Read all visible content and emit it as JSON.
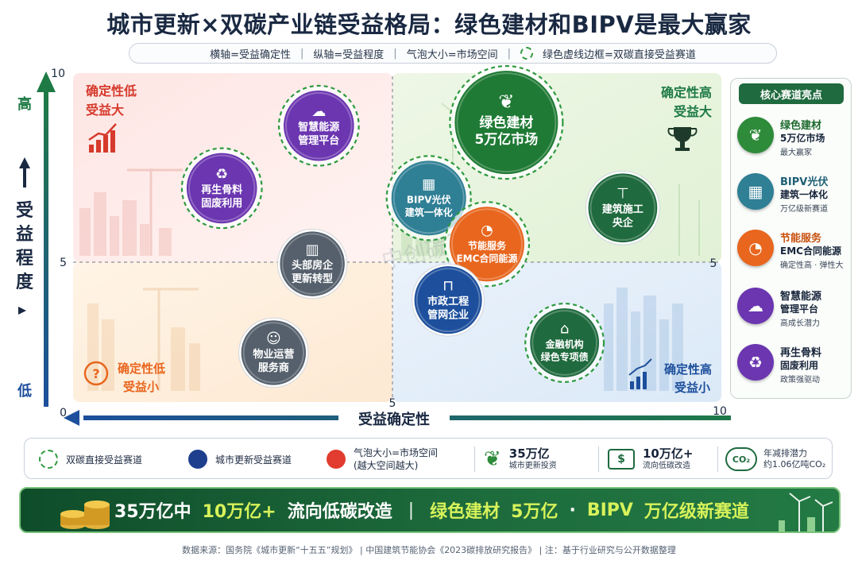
{
  "title": "城市更新×双碳产业链受益格局：绿色建材和BIPV是最大赢家",
  "legend_top": {
    "x_def": "横轴=受益确定性",
    "y_def": "纵轴=受益程度",
    "bubble_def": "气泡大小=市场空间",
    "green_frame_def": "绿色虚线边框=双碳直接受益赛道"
  },
  "watermark": "中创碳碳",
  "axes": {
    "y_title": "受益程度",
    "y_top_label": "高",
    "y_bottom_label": "低",
    "x_title": "受益确定性",
    "x_right_label": "高",
    "y_ticks": [
      "10",
      "5",
      "0"
    ],
    "x_ticks": [
      "5",
      "10"
    ],
    "midline_label": "5"
  },
  "quadrants": {
    "top_left": {
      "line1": "确定性低",
      "line2": "受益大"
    },
    "top_right": {
      "line1": "确定性高",
      "line2": "受益大"
    },
    "bottom_left": {
      "line1": "确定性低",
      "line2": "受益小"
    },
    "bottom_right": {
      "line1": "确定性高",
      "line2": "受益小"
    }
  },
  "colors": {
    "green_accent": "#2e9a3f",
    "green_dark": "#1d6b3c",
    "navy": "#1d4f9c",
    "red_dot": "#e23b2f",
    "orange": "#e8661e",
    "purple": "#6b36b0",
    "teal": "#2f7f95",
    "grey_bubble": "#55606c",
    "banner_highlight": "#d7f25a"
  },
  "chart_data": {
    "type": "scatter",
    "title": "城市更新×双碳产业链受益格局：绿色建材和BIPV是最大赢家",
    "xlabel": "受益确定性",
    "ylabel": "受益程度",
    "xlim": [
      0,
      10
    ],
    "ylim": [
      0,
      10
    ],
    "reference_lines": {
      "x": 5,
      "y": 5
    },
    "grid": false,
    "size_encodes": "气泡大小=市场空间",
    "bubbles": [
      {
        "name": "绿色建材",
        "label_lines": [
          "绿色建材",
          "5万亿市场"
        ],
        "x": 6.7,
        "y": 8.5,
        "size": 5,
        "color": "#1f7a35",
        "dashed_ring": true,
        "icon": "leaf-icon"
      },
      {
        "name": "BIPV光伏",
        "label_lines": [
          "BIPV光伏",
          "建筑一体化"
        ],
        "x": 5.5,
        "y": 6.2,
        "size": 3,
        "color": "#2f7f95",
        "dashed_ring": true,
        "icon": "solar-panel-icon"
      },
      {
        "name": "节能服务",
        "label_lines": [
          "节能服务",
          "EMC合同能源"
        ],
        "x": 6.4,
        "y": 4.8,
        "size": 3,
        "color": "#e8661e",
        "dashed_ring": true,
        "icon": "gauge-icon"
      },
      {
        "name": "建筑施工央企",
        "label_lines": [
          "建筑施工",
          "央企"
        ],
        "x": 8.5,
        "y": 5.9,
        "size": 2.6,
        "color": "#1f6a3e",
        "dashed_ring": false,
        "icon": "crane-icon"
      },
      {
        "name": "市政工程管网企业",
        "label_lines": [
          "市政工程",
          "管网企业"
        ],
        "x": 5.8,
        "y": 3.1,
        "size": 2.5,
        "color": "#1d4f9c",
        "dashed_ring": false,
        "icon": "pipe-icon"
      },
      {
        "name": "金融机构绿色专项债",
        "label_lines": [
          "金融机构",
          "绿色专项债"
        ],
        "x": 7.6,
        "y": 1.8,
        "size": 2.6,
        "color": "#1f6a3e",
        "dashed_ring": true,
        "icon": "bank-icon"
      },
      {
        "name": "智慧能源管理平台",
        "label_lines": [
          "智慧能源",
          "管理平台"
        ],
        "x": 3.8,
        "y": 8.4,
        "size": 2.7,
        "color": "#6b36b0",
        "dashed_ring": true,
        "icon": "cloud-iot-icon"
      },
      {
        "name": "再生骨料固废利用",
        "label_lines": [
          "再生骨料",
          "固废利用"
        ],
        "x": 2.3,
        "y": 6.5,
        "size": 2.7,
        "color": "#6b36b0",
        "dashed_ring": true,
        "icon": "recycle-icon"
      },
      {
        "name": "头部房企更新转型",
        "label_lines": [
          "头部房企",
          "更新转型"
        ],
        "x": 3.7,
        "y": 4.2,
        "size": 2.3,
        "color": "#55606c",
        "dashed_ring": false,
        "icon": "building-icon"
      },
      {
        "name": "物业运营服务商",
        "label_lines": [
          "物业运营",
          "服务商"
        ],
        "x": 3.1,
        "y": 1.5,
        "size": 2.3,
        "color": "#55606c",
        "dashed_ring": false,
        "icon": "people-icon"
      }
    ]
  },
  "side_panel": {
    "title": "核心赛道亮点",
    "items": [
      {
        "title": "绿色建材",
        "line2": "5万亿市场",
        "line3": "最大赢家",
        "color": "#2e8b3a",
        "icon": "leaf-icon"
      },
      {
        "title": "BIPV光伏",
        "line2": "建筑一体化",
        "line3": "万亿级新赛道",
        "color": "#2f7f95",
        "icon": "solar-panel-icon"
      },
      {
        "title": "节能服务",
        "line2": "EMC合同能源",
        "line3": "确定性高 · 弹性大",
        "color": "#e8661e",
        "icon": "gauge-icon"
      },
      {
        "title": "智慧能源",
        "line2": "管理平台",
        "line3": "高成长潜力",
        "color": "#6b36b0",
        "icon": "cloud-iot-icon"
      },
      {
        "title": "再生骨料",
        "line2": "固废利用",
        "line3": "政策强驱动",
        "color": "#6b36b0",
        "icon": "recycle-icon"
      }
    ]
  },
  "bottom_legend": {
    "green_ring": "双碳直接受益赛道",
    "blue_dot": "城市更新受益赛道",
    "red_dot_line1": "气泡大小=市场空间",
    "red_dot_line2": "(越大空间越大)",
    "stat1_value": "35万亿",
    "stat1_label": "城市更新投资",
    "stat2_value": "10万亿+",
    "stat2_label": "流向低碳改造",
    "stat3_icon_text": "CO₂",
    "stat3_line1": "年减排潜力",
    "stat3_line2": "约1.06亿吨CO₂"
  },
  "banner": {
    "part1": "35万亿中",
    "part2": "10万亿+",
    "part3": "流向低碳改造",
    "divider": "|",
    "part4": "绿色建材",
    "part5": "5万亿",
    "part6": "·",
    "part7": "BIPV",
    "part8": "万亿级新赛道"
  },
  "source": "数据来源：国务院《城市更新“十五五”规划》 | 中国建筑节能协会《2023碳排放研究报告》 | 注：基于行业研究与公开数据整理"
}
